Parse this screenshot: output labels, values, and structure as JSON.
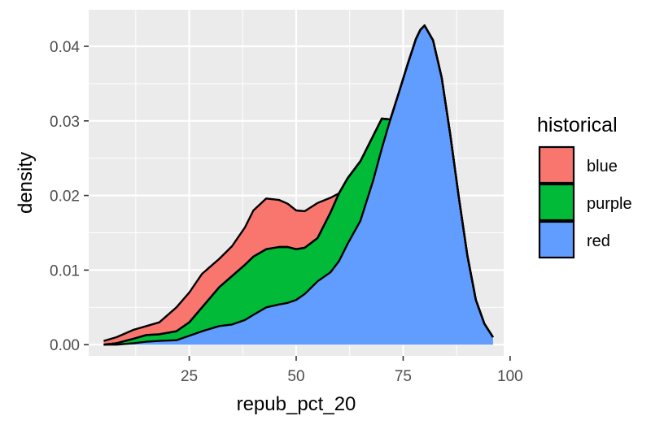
{
  "chart_data": {
    "type": "area",
    "subtype": "stacked-density",
    "xlabel": "repub_pct_20",
    "ylabel": "density",
    "xlim": [
      1.5,
      98.5
    ],
    "ylim": [
      -0.0015,
      0.0449
    ],
    "x_ticks": [
      25,
      50,
      75,
      100
    ],
    "y_ticks": [
      0.0,
      0.01,
      0.02,
      0.03,
      0.04
    ],
    "x_tick_labels": [
      "25",
      "50",
      "75",
      "100"
    ],
    "y_tick_labels": [
      "0.00",
      "0.01",
      "0.02",
      "0.03",
      "0.04"
    ],
    "grid": true,
    "legend": {
      "title": "historical",
      "position": "right"
    },
    "x": [
      5,
      8,
      12,
      15,
      18,
      22,
      25,
      28,
      32,
      35,
      38,
      40,
      43,
      46,
      48,
      50,
      52,
      55,
      58,
      60,
      62,
      65,
      68,
      70,
      72,
      74,
      76,
      78,
      79,
      80,
      82,
      84,
      86,
      88,
      90,
      92,
      94,
      96
    ],
    "series": [
      {
        "name": "red",
        "color": "#619CFF",
        "values": [
          0.0,
          0.0,
          0.0002,
          0.0004,
          0.0005,
          0.0006,
          0.0012,
          0.0018,
          0.0025,
          0.0027,
          0.0033,
          0.004,
          0.005,
          0.0054,
          0.0056,
          0.006,
          0.0068,
          0.0085,
          0.0097,
          0.0112,
          0.0135,
          0.0166,
          0.022,
          0.0263,
          0.0302,
          0.0338,
          0.0375,
          0.041,
          0.0422,
          0.0428,
          0.0408,
          0.0358,
          0.0282,
          0.0198,
          0.012,
          0.006,
          0.0028,
          0.001
        ]
      },
      {
        "name": "purple",
        "color": "#00BA38",
        "values": [
          0.0,
          0.0002,
          0.0006,
          0.0009,
          0.0009,
          0.0012,
          0.0018,
          0.0032,
          0.0052,
          0.0065,
          0.0074,
          0.0078,
          0.0078,
          0.0077,
          0.0075,
          0.0068,
          0.0062,
          0.0058,
          0.008,
          0.0091,
          0.0088,
          0.008,
          0.006,
          0.004,
          0.0,
          0.0,
          0.0,
          0.0,
          0.0,
          0.0,
          0.0,
          0.0,
          0.0,
          0.0,
          0.0,
          0.0,
          0.0,
          0.0
        ]
      },
      {
        "name": "purple",
        "color": "#00BA38",
        "values": [
          0.0,
          0.0,
          0.0,
          0.0,
          0.0,
          0.0,
          0.0,
          0.0,
          0.0,
          0.0,
          0.0,
          0.0,
          0.0,
          0.0,
          0.0,
          0.0,
          0.0,
          0.0,
          0.0,
          0.0,
          0.0,
          0.0,
          0.0,
          0.0,
          0.0,
          0.0,
          0.0,
          0.0,
          0.0,
          0.0,
          0.0,
          0.0,
          0.0,
          0.0,
          0.0,
          0.0,
          0.0,
          0.0
        ]
      },
      {
        "name": "blue",
        "color": "#F8766D",
        "values": [
          0.0005,
          0.0008,
          0.0012,
          0.0012,
          0.0016,
          0.0032,
          0.004,
          0.0045,
          0.0038,
          0.004,
          0.005,
          0.0062,
          0.0068,
          0.0063,
          0.0058,
          0.0052,
          0.0049,
          0.0047,
          0.002,
          0.0,
          0.0,
          0.0,
          0.0,
          0.0,
          0.0,
          0.0,
          0.0,
          0.0,
          0.0,
          0.0,
          0.0,
          0.0,
          0.0,
          0.0,
          0.0,
          0.0,
          0.0,
          0.0
        ]
      }
    ]
  }
}
